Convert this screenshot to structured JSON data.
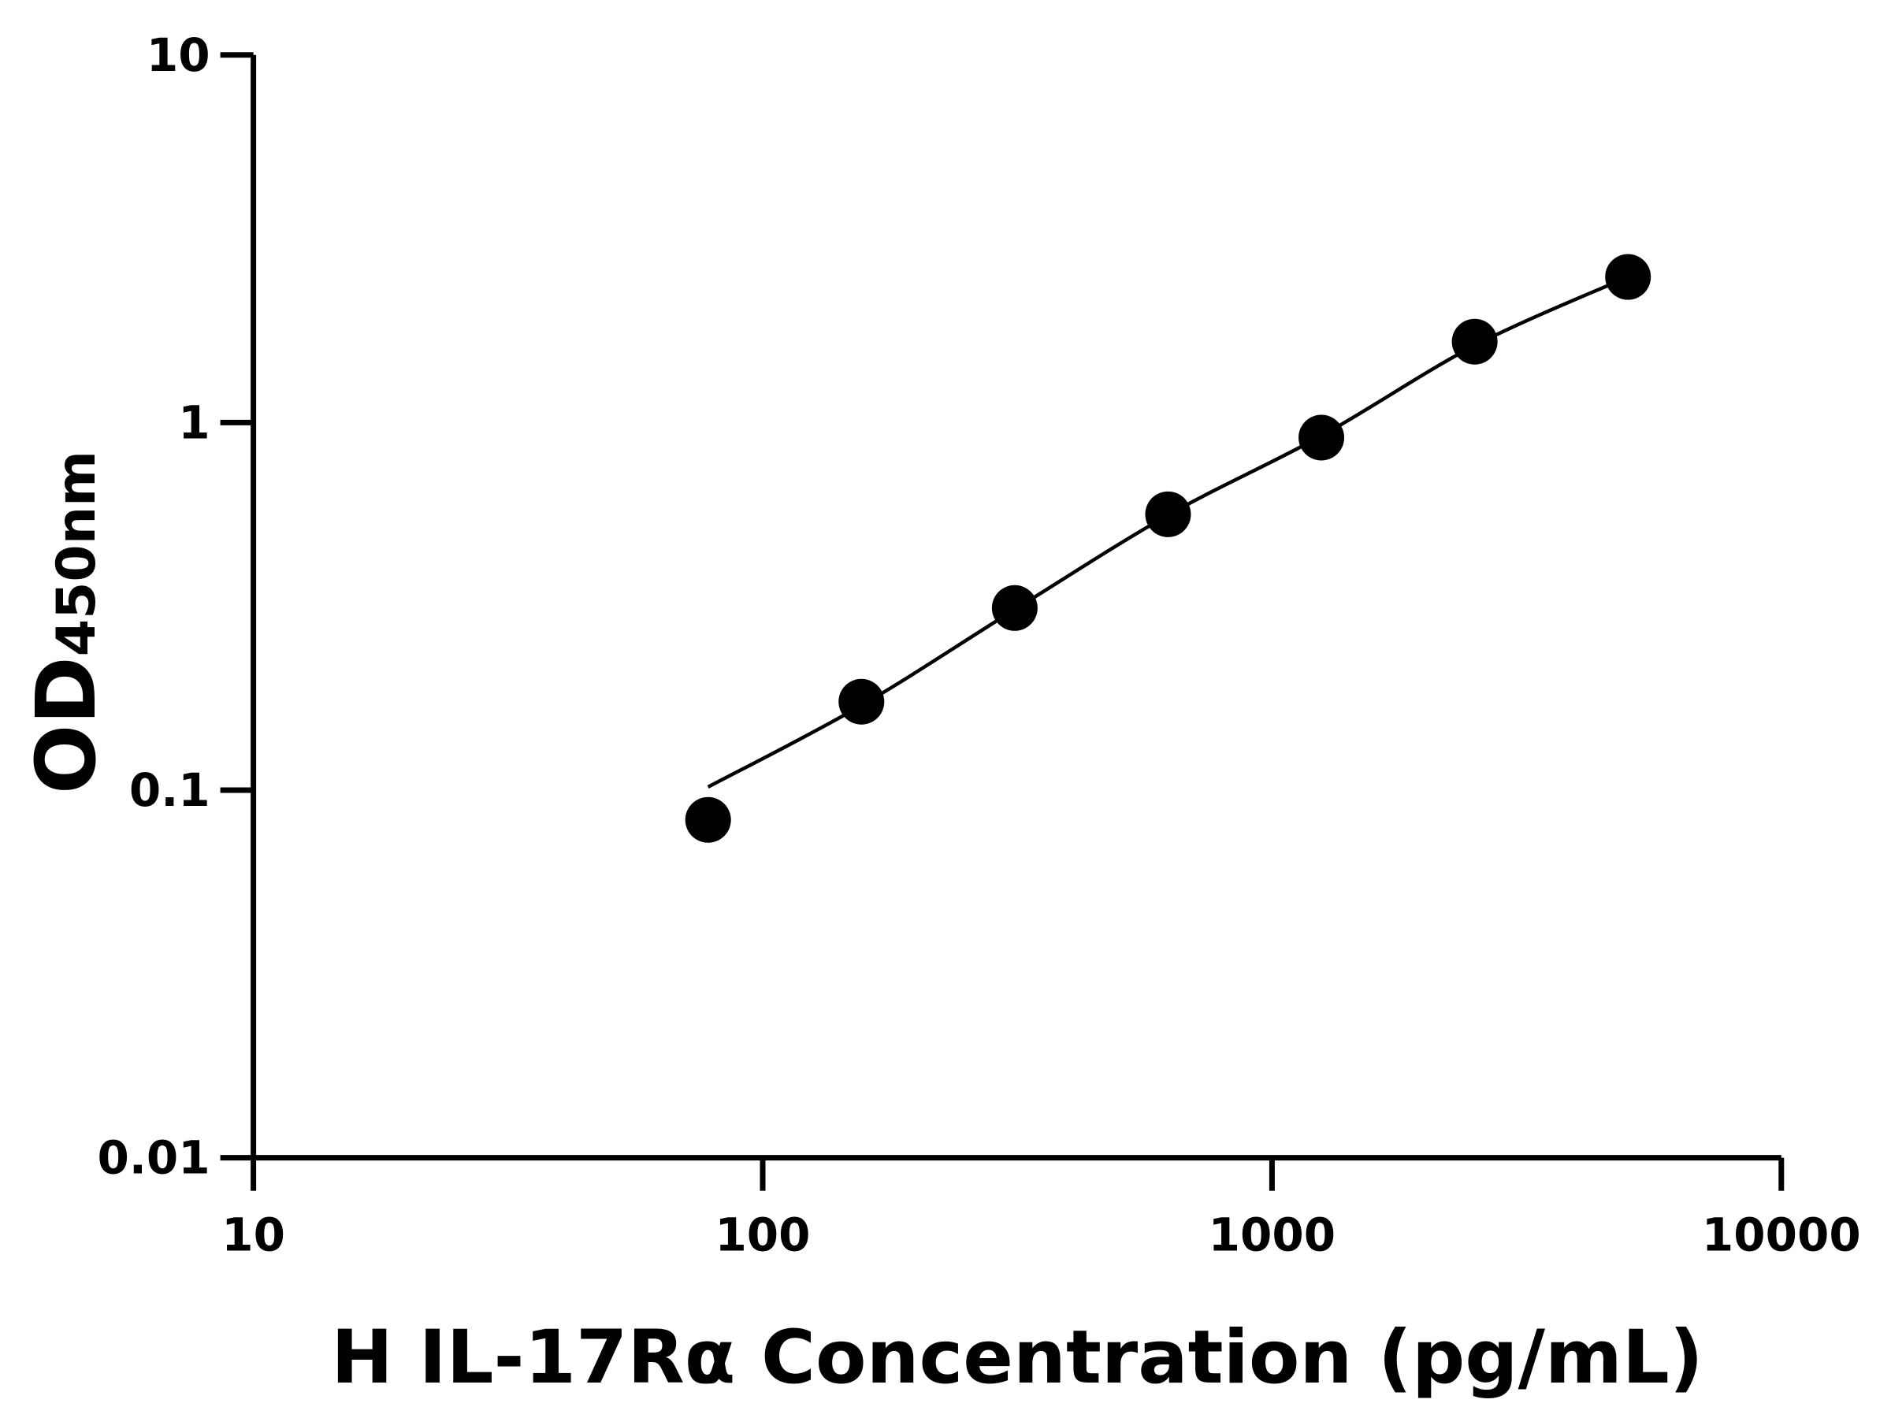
{
  "chart_data": {
    "type": "scatter",
    "xlabel": "H IL-17Rα Concentration (pg/mL)",
    "ylabel_main": "OD",
    "ylabel_sub": "450nm",
    "x_scale": "log",
    "y_scale": "log",
    "xlim": [
      10,
      10000
    ],
    "ylim": [
      0.01,
      10
    ],
    "x_ticks": [
      10,
      100,
      1000,
      10000
    ],
    "x_tick_labels": [
      "10",
      "100",
      "1000",
      "10000"
    ],
    "y_ticks": [
      0.01,
      0.1,
      1,
      10
    ],
    "y_tick_labels": [
      "0.01",
      "0.1",
      "1",
      "10"
    ],
    "grid": false,
    "points": {
      "x": [
        78.125,
        156.25,
        312.5,
        625,
        1250,
        2500,
        5000
      ],
      "y": [
        0.083,
        0.174,
        0.313,
        0.563,
        0.91,
        1.66,
        2.49
      ]
    },
    "fit_curve": {
      "x": [
        78.125,
        156.25,
        312.5,
        625,
        1250,
        2500,
        5000
      ],
      "y": [
        0.102,
        0.17,
        0.31,
        0.56,
        0.92,
        1.62,
        2.49
      ]
    },
    "colors": {
      "points": "#000000",
      "curve": "#000000",
      "axes": "#000000"
    }
  }
}
